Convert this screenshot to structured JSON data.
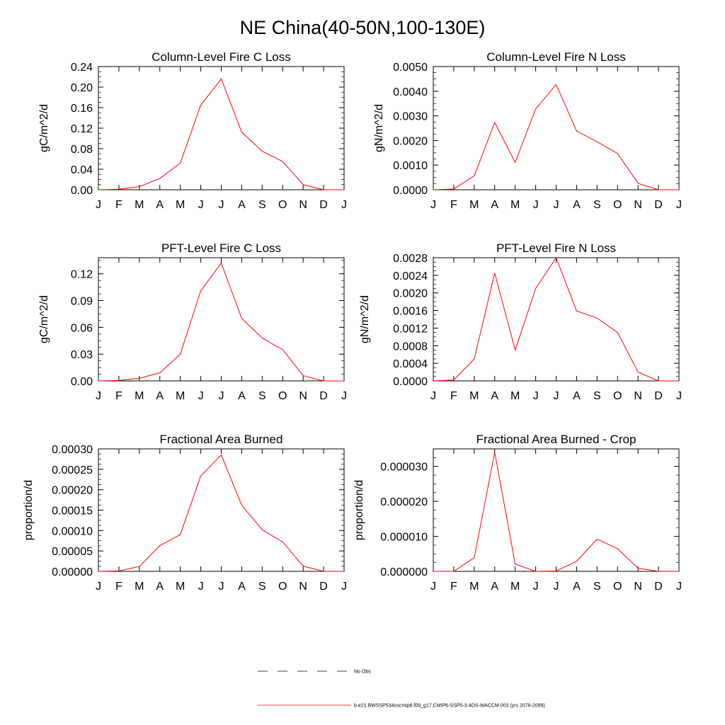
{
  "figure": {
    "title": "NE China(40-50N,100-130E)"
  },
  "legend": {
    "entries": [
      {
        "label": "No Obs",
        "color": "#000000",
        "style": "dashed"
      },
      {
        "label": "b.e21.BWSSP534oscmip6.f09_g17.CMIP6-SSP5-3.4OS-WACCM.003 (yrs 2076-2099)",
        "color": "#ff0000",
        "style": "solid"
      }
    ]
  },
  "chart_data": [
    {
      "type": "line",
      "title": "Column-Level Fire C Loss",
      "xlabel": "",
      "ylabel": "gC/m^2/d",
      "categories": [
        "J",
        "F",
        "M",
        "A",
        "M",
        "J",
        "J",
        "A",
        "S",
        "O",
        "N",
        "D",
        "J"
      ],
      "ylim": [
        0,
        0.24
      ],
      "yticks": [
        "0.00",
        "0.04",
        "0.08",
        "0.12",
        "0.16",
        "0.20",
        "0.24"
      ],
      "series": [
        {
          "name": "b.e21.BWSSP534oscmip6.f09_g17.CMIP6-SSP5-3.4OS-WACCM.003 (yrs 2076-2099)",
          "color": "#ff0000",
          "values": [
            0.0,
            0.001,
            0.006,
            0.022,
            0.052,
            0.165,
            0.216,
            0.112,
            0.075,
            0.055,
            0.01,
            0.0,
            0.0
          ]
        }
      ]
    },
    {
      "type": "line",
      "title": "Column-Level Fire N Loss",
      "xlabel": "",
      "ylabel": "gN/m^2/d",
      "categories": [
        "J",
        "F",
        "M",
        "A",
        "M",
        "J",
        "J",
        "A",
        "S",
        "O",
        "N",
        "D",
        "J"
      ],
      "ylim": [
        0,
        0.005
      ],
      "yticks": [
        "0.0000",
        "0.0010",
        "0.0020",
        "0.0030",
        "0.0040",
        "0.0050"
      ],
      "series": [
        {
          "name": "b.e21.BWSSP534oscmip6.f09_g17.CMIP6-SSP5-3.4OS-WACCM.003 (yrs 2076-2099)",
          "color": "#ff0000",
          "values": [
            0.0,
            3e-05,
            0.00057,
            0.00273,
            0.00111,
            0.00328,
            0.00427,
            0.00238,
            0.00195,
            0.00147,
            0.00026,
            0.0,
            0.0
          ]
        }
      ]
    },
    {
      "type": "line",
      "title": "PFT-Level Fire C Loss",
      "xlabel": "",
      "ylabel": "gC/m^2/d",
      "categories": [
        "J",
        "F",
        "M",
        "A",
        "M",
        "J",
        "J",
        "A",
        "S",
        "O",
        "N",
        "D",
        "J"
      ],
      "ylim": [
        0,
        0.138
      ],
      "yticks": [
        "0.00",
        "0.03",
        "0.06",
        "0.09",
        "0.12"
      ],
      "series": [
        {
          "name": "b.e21.BWSSP534oscmip6.f09_g17.CMIP6-SSP5-3.4OS-WACCM.003 (yrs 2076-2099)",
          "color": "#ff0000",
          "values": [
            0.0,
            0.0005,
            0.003,
            0.009,
            0.03,
            0.101,
            0.132,
            0.07,
            0.048,
            0.035,
            0.006,
            0.0,
            0.0
          ]
        }
      ]
    },
    {
      "type": "line",
      "title": "PFT-Level Fire N Loss",
      "xlabel": "",
      "ylabel": "gN/m^2/d",
      "categories": [
        "J",
        "F",
        "M",
        "A",
        "M",
        "J",
        "J",
        "A",
        "S",
        "O",
        "N",
        "D",
        "J"
      ],
      "ylim": [
        0,
        0.0028
      ],
      "yticks": [
        "0.0000",
        "0.0004",
        "0.0008",
        "0.0012",
        "0.0016",
        "0.0020",
        "0.0024",
        "0.0028"
      ],
      "series": [
        {
          "name": "b.e21.BWSSP534oscmip6.f09_g17.CMIP6-SSP5-3.4OS-WACCM.003 (yrs 2076-2099)",
          "color": "#ff0000",
          "values": [
            0.0,
            2e-05,
            0.0005,
            0.00245,
            0.0007,
            0.0021,
            0.0028,
            0.00159,
            0.00143,
            0.0011,
            0.0002,
            0.0,
            0.0
          ]
        }
      ]
    },
    {
      "type": "line",
      "title": "Fractional Area Burned",
      "xlabel": "",
      "ylabel": "proportion/d",
      "categories": [
        "J",
        "F",
        "M",
        "A",
        "M",
        "J",
        "J",
        "A",
        "S",
        "O",
        "N",
        "D",
        "J"
      ],
      "ylim": [
        0,
        0.0003
      ],
      "yticks": [
        "0.00000",
        "0.00005",
        "0.00010",
        "0.00015",
        "0.00020",
        "0.00025",
        "0.00030"
      ],
      "series": [
        {
          "name": "b.e21.BWSSP534oscmip6.f09_g17.CMIP6-SSP5-3.4OS-WACCM.003 (yrs 2076-2099)",
          "color": "#ff0000",
          "values": [
            0.0,
            1e-06,
            1.2e-05,
            6.3e-05,
            9e-05,
            0.000234,
            0.000285,
            0.000162,
            0.000102,
            7.2e-05,
            1.3e-05,
            0.0,
            0.0
          ]
        }
      ]
    },
    {
      "type": "line",
      "title": "Fractional Area Burned - Crop",
      "xlabel": "",
      "ylabel": "proportion/d",
      "categories": [
        "J",
        "F",
        "M",
        "A",
        "M",
        "J",
        "J",
        "A",
        "S",
        "O",
        "N",
        "D",
        "J"
      ],
      "ylim": [
        0,
        3.5e-05
      ],
      "yticks": [
        "0.000000",
        "0.000010",
        "0.000020",
        "0.000030"
      ],
      "series": [
        {
          "name": "b.e21.BWSSP534oscmip6.f09_g17.CMIP6-SSP5-3.4OS-WACCM.003 (yrs 2076-2099)",
          "color": "#ff0000",
          "values": [
            0.0,
            0.0,
            3.9e-06,
            3.4e-05,
            2.1e-06,
            0.0,
            1e-07,
            2.9e-06,
            9.2e-06,
            6.5e-06,
            9e-07,
            0.0,
            0.0
          ]
        }
      ]
    }
  ]
}
